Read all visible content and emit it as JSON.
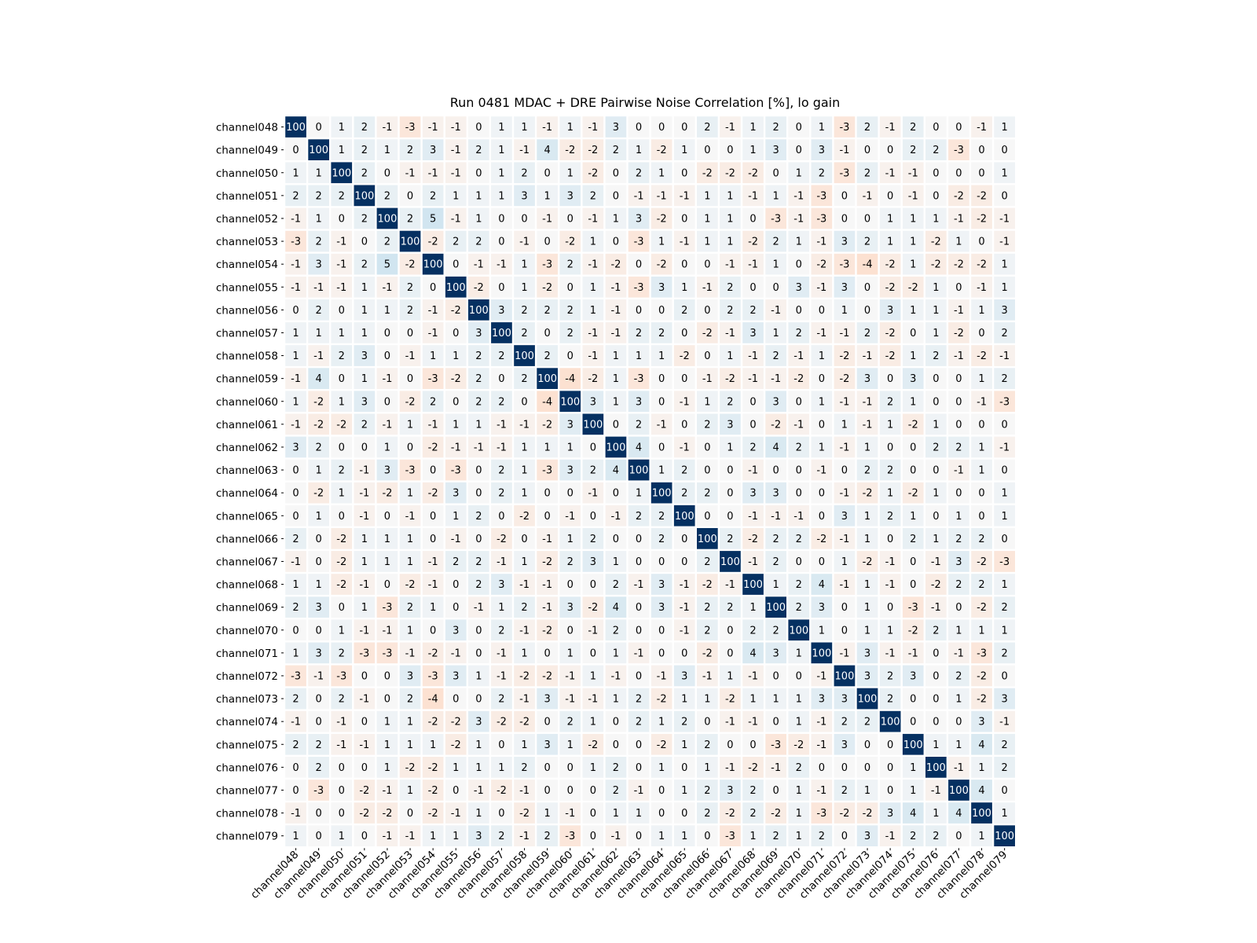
{
  "chart_data": {
    "type": "heatmap",
    "title": "Run 0481 MDAC + DRE Pairwise Noise Correlation [%], lo gain",
    "xlabel": "",
    "ylabel": "",
    "labels": [
      "channel048",
      "channel049",
      "channel050",
      "channel051",
      "channel052",
      "channel053",
      "channel054",
      "channel055",
      "channel056",
      "channel057",
      "channel058",
      "channel059",
      "channel060",
      "channel061",
      "channel062",
      "channel063",
      "channel064",
      "channel065",
      "channel066",
      "channel067",
      "channel068",
      "channel069",
      "channel070",
      "channel071",
      "channel072",
      "channel073",
      "channel074",
      "channel075",
      "channel076",
      "channel077",
      "channel078",
      "channel079"
    ],
    "color_scale": {
      "min": -100,
      "max": 100,
      "negative": "#67001f",
      "zero": "#f7f7f7",
      "positive": "#053061"
    },
    "matrix": [
      [
        100,
        0,
        1,
        2,
        -1,
        -3,
        -1,
        -1,
        0,
        1,
        1,
        -1,
        1,
        -1,
        3,
        0,
        0,
        0,
        2,
        -1,
        1,
        2,
        0,
        1,
        -3,
        2,
        -1,
        2,
        0,
        0,
        -1,
        1
      ],
      [
        0,
        100,
        1,
        2,
        1,
        2,
        3,
        -1,
        2,
        1,
        -1,
        4,
        -2,
        -2,
        2,
        1,
        -2,
        1,
        0,
        0,
        1,
        3,
        0,
        3,
        -1,
        0,
        0,
        2,
        2,
        -3,
        0,
        0
      ],
      [
        1,
        1,
        100,
        2,
        0,
        -1,
        -1,
        -1,
        0,
        1,
        2,
        0,
        1,
        -2,
        0,
        2,
        1,
        0,
        -2,
        -2,
        -2,
        0,
        1,
        2,
        -3,
        2,
        -1,
        -1,
        0,
        0,
        0,
        1
      ],
      [
        2,
        2,
        2,
        100,
        2,
        0,
        2,
        1,
        1,
        1,
        3,
        1,
        3,
        2,
        0,
        -1,
        -1,
        -1,
        1,
        1,
        -1,
        1,
        -1,
        -3,
        0,
        -1,
        0,
        -1,
        0,
        -2,
        -2,
        0
      ],
      [
        -1,
        1,
        0,
        2,
        100,
        2,
        5,
        -1,
        1,
        0,
        0,
        -1,
        0,
        -1,
        1,
        3,
        -2,
        0,
        1,
        1,
        0,
        -3,
        -1,
        -3,
        0,
        0,
        1,
        1,
        1,
        -1,
        -2,
        -1
      ],
      [
        -3,
        2,
        -1,
        0,
        2,
        100,
        -2,
        2,
        2,
        0,
        -1,
        0,
        -2,
        1,
        0,
        -3,
        1,
        -1,
        1,
        1,
        -2,
        2,
        1,
        -1,
        3,
        2,
        1,
        1,
        -2,
        1,
        0,
        -1
      ],
      [
        -1,
        3,
        -1,
        2,
        5,
        -2,
        100,
        0,
        -1,
        -1,
        1,
        -3,
        2,
        -1,
        -2,
        0,
        -2,
        0,
        0,
        -1,
        -1,
        1,
        0,
        -2,
        -3,
        -4,
        -2,
        1,
        -2,
        -2,
        -2,
        1
      ],
      [
        -1,
        -1,
        -1,
        1,
        -1,
        2,
        0,
        100,
        -2,
        0,
        1,
        -2,
        0,
        1,
        -1,
        -3,
        3,
        1,
        -1,
        2,
        0,
        0,
        3,
        -1,
        3,
        0,
        -2,
        -2,
        1,
        0,
        -1,
        1
      ],
      [
        0,
        2,
        0,
        1,
        1,
        2,
        -1,
        -2,
        100,
        3,
        2,
        2,
        2,
        1,
        -1,
        0,
        0,
        2,
        0,
        2,
        2,
        -1,
        0,
        0,
        1,
        0,
        3,
        1,
        1,
        -1,
        1,
        3
      ],
      [
        1,
        1,
        1,
        1,
        0,
        0,
        -1,
        0,
        3,
        100,
        2,
        0,
        2,
        -1,
        -1,
        2,
        2,
        0,
        -2,
        -1,
        3,
        1,
        2,
        -1,
        -1,
        2,
        -2,
        0,
        1,
        -2,
        0,
        2
      ],
      [
        1,
        -1,
        2,
        3,
        0,
        -1,
        1,
        1,
        2,
        2,
        100,
        2,
        0,
        -1,
        1,
        1,
        1,
        -2,
        0,
        1,
        -1,
        2,
        -1,
        1,
        -2,
        -1,
        -2,
        1,
        2,
        -1,
        -2,
        -1
      ],
      [
        -1,
        4,
        0,
        1,
        -1,
        0,
        -3,
        -2,
        2,
        0,
        2,
        100,
        -4,
        -2,
        1,
        -3,
        0,
        0,
        -1,
        -2,
        -1,
        -1,
        -2,
        0,
        -2,
        3,
        0,
        3,
        0,
        0,
        1,
        2
      ],
      [
        1,
        -2,
        1,
        3,
        0,
        -2,
        2,
        0,
        2,
        2,
        0,
        -4,
        100,
        3,
        1,
        3,
        0,
        -1,
        1,
        2,
        0,
        3,
        0,
        1,
        -1,
        -1,
        2,
        1,
        0,
        0,
        -1,
        -3
      ],
      [
        -1,
        -2,
        -2,
        2,
        -1,
        1,
        -1,
        1,
        1,
        -1,
        -1,
        -2,
        3,
        100,
        0,
        2,
        -1,
        0,
        2,
        3,
        0,
        -2,
        -1,
        0,
        1,
        -1,
        1,
        -2,
        1,
        0,
        0,
        0
      ],
      [
        3,
        2,
        0,
        0,
        1,
        0,
        -2,
        -1,
        -1,
        -1,
        1,
        1,
        1,
        0,
        100,
        4,
        0,
        -1,
        0,
        1,
        2,
        4,
        2,
        1,
        -1,
        1,
        0,
        0,
        2,
        2,
        1,
        -1
      ],
      [
        0,
        1,
        2,
        -1,
        3,
        -3,
        0,
        -3,
        0,
        2,
        1,
        -3,
        3,
        2,
        4,
        100,
        1,
        2,
        0,
        0,
        -1,
        0,
        0,
        -1,
        0,
        2,
        2,
        0,
        0,
        -1,
        1,
        0
      ],
      [
        0,
        -2,
        1,
        -1,
        -2,
        1,
        -2,
        3,
        0,
        2,
        1,
        0,
        0,
        -1,
        0,
        1,
        100,
        2,
        2,
        0,
        3,
        3,
        0,
        0,
        -1,
        -2,
        1,
        -2,
        1,
        0,
        0,
        1
      ],
      [
        0,
        1,
        0,
        -1,
        0,
        -1,
        0,
        1,
        2,
        0,
        -2,
        0,
        -1,
        0,
        -1,
        2,
        2,
        100,
        0,
        0,
        -1,
        -1,
        -1,
        0,
        3,
        1,
        2,
        1,
        0,
        1,
        0,
        1
      ],
      [
        2,
        0,
        -2,
        1,
        1,
        1,
        0,
        -1,
        0,
        -2,
        0,
        -1,
        1,
        2,
        0,
        0,
        2,
        0,
        100,
        2,
        -2,
        2,
        2,
        -2,
        -1,
        1,
        0,
        2,
        1,
        2,
        2,
        0
      ],
      [
        -1,
        0,
        -2,
        1,
        1,
        1,
        -1,
        2,
        2,
        -1,
        1,
        -2,
        2,
        3,
        1,
        0,
        0,
        0,
        2,
        100,
        -1,
        2,
        0,
        0,
        1,
        -2,
        -1,
        0,
        -1,
        3,
        -2,
        -3
      ],
      [
        1,
        1,
        -2,
        -1,
        0,
        -2,
        -1,
        0,
        2,
        3,
        -1,
        -1,
        0,
        0,
        2,
        -1,
        3,
        -1,
        -2,
        -1,
        100,
        1,
        2,
        4,
        -1,
        1,
        -1,
        0,
        -2,
        2,
        2,
        1
      ],
      [
        2,
        3,
        0,
        1,
        -3,
        2,
        1,
        0,
        -1,
        1,
        2,
        -1,
        3,
        -2,
        4,
        0,
        3,
        -1,
        2,
        2,
        1,
        100,
        2,
        3,
        0,
        1,
        0,
        -3,
        -1,
        0,
        -2,
        2
      ],
      [
        0,
        0,
        1,
        -1,
        -1,
        1,
        0,
        3,
        0,
        2,
        -1,
        -2,
        0,
        -1,
        2,
        0,
        0,
        -1,
        2,
        0,
        2,
        2,
        100,
        1,
        0,
        1,
        1,
        -2,
        2,
        1,
        1,
        1
      ],
      [
        1,
        3,
        2,
        -3,
        -3,
        -1,
        -2,
        -1,
        0,
        -1,
        1,
        0,
        1,
        0,
        1,
        -1,
        0,
        0,
        -2,
        0,
        4,
        3,
        1,
        100,
        -1,
        3,
        -1,
        -1,
        0,
        -1,
        -3,
        2
      ],
      [
        -3,
        -1,
        -3,
        0,
        0,
        3,
        -3,
        3,
        1,
        -1,
        -2,
        -2,
        -1,
        1,
        -1,
        0,
        -1,
        3,
        -1,
        1,
        -1,
        0,
        0,
        -1,
        100,
        3,
        2,
        3,
        0,
        2,
        -2,
        0
      ],
      [
        2,
        0,
        2,
        -1,
        0,
        2,
        -4,
        0,
        0,
        2,
        -1,
        3,
        -1,
        -1,
        1,
        2,
        -2,
        1,
        1,
        -2,
        1,
        1,
        1,
        3,
        3,
        100,
        2,
        0,
        0,
        1,
        -2,
        3
      ],
      [
        -1,
        0,
        -1,
        0,
        1,
        1,
        -2,
        -2,
        3,
        -2,
        -2,
        0,
        2,
        1,
        0,
        2,
        1,
        2,
        0,
        -1,
        -1,
        0,
        1,
        -1,
        2,
        2,
        100,
        0,
        0,
        0,
        3,
        -1
      ],
      [
        2,
        2,
        -1,
        -1,
        1,
        1,
        1,
        -2,
        1,
        0,
        1,
        3,
        1,
        -2,
        0,
        0,
        -2,
        1,
        2,
        0,
        0,
        -3,
        -2,
        -1,
        3,
        0,
        0,
        100,
        1,
        1,
        4,
        2
      ],
      [
        0,
        2,
        0,
        0,
        1,
        -2,
        -2,
        1,
        1,
        1,
        2,
        0,
        0,
        1,
        2,
        0,
        1,
        0,
        1,
        -1,
        -2,
        -1,
        2,
        0,
        0,
        0,
        0,
        1,
        100,
        -1,
        1,
        2
      ],
      [
        0,
        -3,
        0,
        -2,
        -1,
        1,
        -2,
        0,
        -1,
        -2,
        -1,
        0,
        0,
        0,
        2,
        -1,
        0,
        1,
        2,
        3,
        2,
        0,
        1,
        -1,
        2,
        1,
        0,
        1,
        -1,
        100,
        4,
        0
      ],
      [
        -1,
        0,
        0,
        -2,
        -2,
        0,
        -2,
        -1,
        1,
        0,
        -2,
        1,
        -1,
        0,
        1,
        1,
        0,
        0,
        2,
        -2,
        2,
        -2,
        1,
        -3,
        -2,
        -2,
        3,
        4,
        1,
        4,
        100,
        1
      ],
      [
        1,
        0,
        1,
        0,
        -1,
        -1,
        1,
        1,
        3,
        2,
        -1,
        2,
        -3,
        0,
        -1,
        0,
        1,
        1,
        0,
        -3,
        1,
        2,
        1,
        2,
        0,
        3,
        -1,
        2,
        2,
        0,
        1,
        100
      ]
    ]
  }
}
